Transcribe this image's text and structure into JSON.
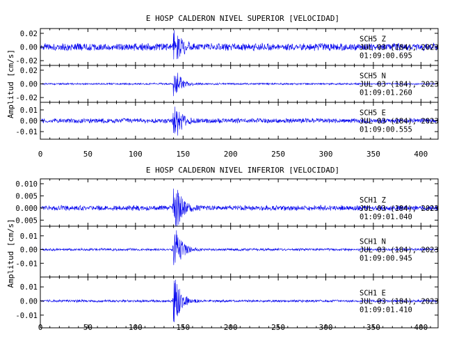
{
  "chart_data": [
    {
      "type": "line",
      "title": "E HOSP CALDERON NIVEL SUPERIOR [VELOCIDAD]",
      "ylabel": "Amplitud [cm/s]",
      "xlabel": "",
      "xlim": [
        0,
        418
      ],
      "xticks": [
        "0",
        "50",
        "100",
        "150",
        "200",
        "250",
        "300",
        "350",
        "400"
      ],
      "trace_color": "#0000ee",
      "channels": [
        {
          "station": "SCH5",
          "component": "Z",
          "date": "JUL 03 (184), 2023",
          "time": "01:09:00.695",
          "ylim": [
            -0.027,
            0.027
          ],
          "ytick_values": [
            0.02,
            0.0,
            -0.02
          ],
          "ytick_labels": [
            "0.02",
            "0.00",
            "-0.02"
          ],
          "event_time_s": 140,
          "noise_amplitude": 0.006,
          "peak_amplitude": 0.022
        },
        {
          "station": "SCH5",
          "component": "N",
          "date": "JUL 03 (184), 2023",
          "time": "01:09:01.260",
          "ylim": [
            -0.027,
            0.027
          ],
          "ytick_values": [
            0.02,
            0.0,
            -0.02
          ],
          "ytick_labels": [
            "0.02",
            "0.00",
            "-0.02"
          ],
          "event_time_s": 140,
          "noise_amplitude": 0.0015,
          "peak_amplitude": 0.02
        },
        {
          "station": "SCH5",
          "component": "E",
          "date": "JUL 03 (184), 2023",
          "time": "01:09:00.555",
          "ylim": [
            -0.017,
            0.017
          ],
          "ytick_values": [
            0.01,
            0.0,
            -0.01
          ],
          "ytick_labels": [
            "0.01",
            "0.00",
            "-0.01"
          ],
          "event_time_s": 140,
          "noise_amplitude": 0.0025,
          "peak_amplitude": 0.015
        }
      ]
    },
    {
      "type": "line",
      "title": "E HOSP CALDERON NIVEL INFERIOR [VELOCIDAD]",
      "ylabel": "Amplitud [cm/s]",
      "xlabel": "",
      "xlim": [
        0,
        418
      ],
      "xticks": [
        "0",
        "50",
        "100",
        "150",
        "200",
        "250",
        "300",
        "350",
        "400"
      ],
      "trace_color": "#0000ee",
      "channels": [
        {
          "station": "SCH1",
          "component": "Z",
          "date": "JUL 03 (184), 2023",
          "time": "01:09:01.040",
          "ylim": [
            -0.0075,
            0.012
          ],
          "ytick_values": [
            0.01,
            0.005,
            0.0,
            -0.005
          ],
          "ytick_labels": [
            "0.010",
            "0.005",
            "0.000",
            "-0.005"
          ],
          "event_time_s": 140,
          "noise_amplitude": 0.0012,
          "peak_amplitude": 0.009
        },
        {
          "station": "SCH1",
          "component": "N",
          "date": "JUL 03 (184), 2023",
          "time": "01:09:00.945",
          "ylim": [
            -0.02,
            0.017
          ],
          "ytick_values": [
            0.01,
            0.0,
            -0.01
          ],
          "ytick_labels": [
            "0.01",
            "0.00",
            "-0.01"
          ],
          "event_time_s": 140,
          "noise_amplitude": 0.001,
          "peak_amplitude": 0.015
        },
        {
          "station": "SCH1",
          "component": "E",
          "date": "JUL 03 (184), 2023",
          "time": "01:09:01.410",
          "ylim": [
            -0.019,
            0.017
          ],
          "ytick_values": [
            0.01,
            0.0,
            -0.01
          ],
          "ytick_labels": [
            "0.01",
            "0.00",
            "-0.01"
          ],
          "event_time_s": 140,
          "noise_amplitude": 0.001,
          "peak_amplitude": 0.015
        }
      ]
    }
  ]
}
